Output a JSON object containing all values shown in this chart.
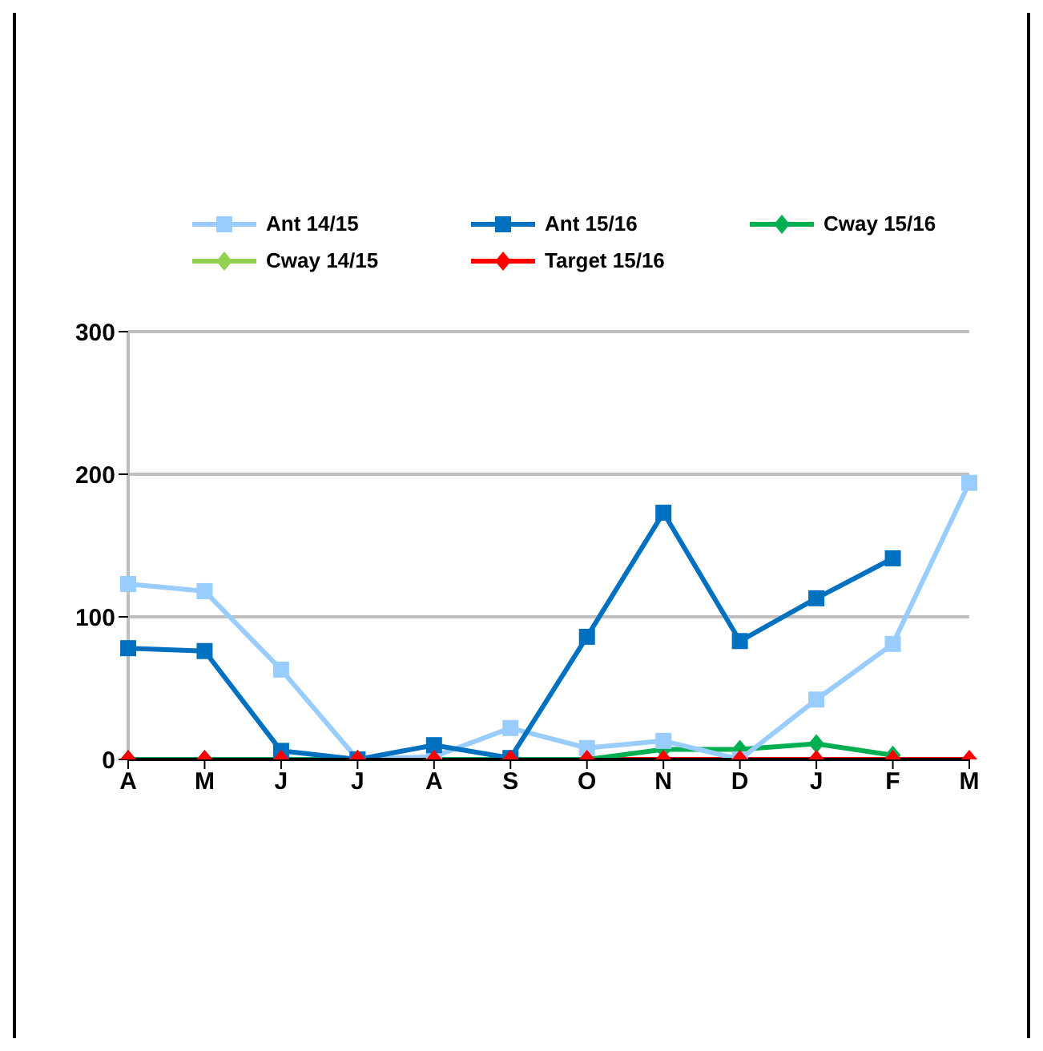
{
  "chart_data": {
    "type": "line",
    "categories": [
      "A",
      "M",
      "J",
      "J",
      "A",
      "S",
      "O",
      "N",
      "D",
      "J",
      "F",
      "M"
    ],
    "series": [
      {
        "name": "Ant 14/15",
        "color": "#99ccff",
        "marker": "square",
        "values": [
          123,
          118,
          63,
          0,
          2,
          22,
          8,
          13,
          0,
          42,
          81,
          194
        ]
      },
      {
        "name": "Ant 15/16",
        "color": "#0070c0",
        "marker": "square",
        "values": [
          78,
          76,
          6,
          0,
          10,
          1,
          86,
          173,
          83,
          113,
          141,
          null
        ]
      },
      {
        "name": "Cway 15/16",
        "color": "#00b050",
        "marker": "diamond",
        "values": [
          0,
          0,
          0,
          0,
          0,
          0,
          0,
          7,
          7,
          11,
          3,
          null
        ]
      },
      {
        "name": "Cway 14/15",
        "color": "#92d050",
        "marker": "diamond",
        "values": [
          null,
          null,
          null,
          null,
          null,
          null,
          null,
          null,
          null,
          null,
          null,
          null
        ]
      },
      {
        "name": "Target 15/16",
        "color": "#ff0000",
        "marker": "diamond",
        "values": [
          0,
          0,
          0,
          0,
          0,
          0,
          0,
          0,
          0,
          0,
          0,
          0
        ]
      }
    ],
    "ylim": [
      0,
      300
    ],
    "yticks": [
      0,
      100,
      200,
      300
    ],
    "grid": "y",
    "legend": "top",
    "line_style": "solid"
  }
}
